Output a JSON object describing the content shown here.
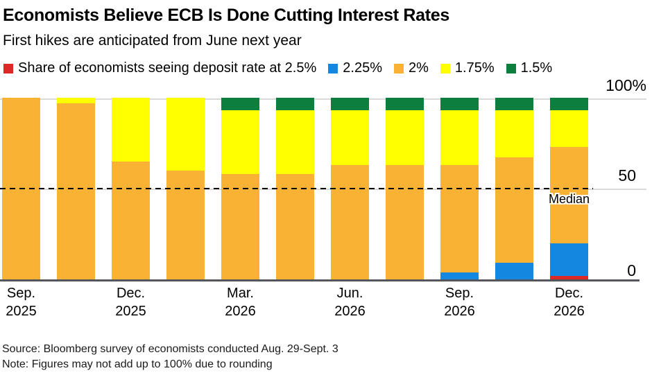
{
  "header": {
    "title": "Economists Believe ECB Is Done Cutting Interest Rates",
    "subtitle": "First hikes are anticipated from June next year"
  },
  "legend": {
    "items": [
      {
        "series": "2.5%",
        "label": "Share of economists seeing deposit rate at 2.5%",
        "color": "#dc2826"
      },
      {
        "series": "2.25%",
        "label": "2.25%",
        "color": "#1488e0"
      },
      {
        "series": "2%",
        "label": "2%",
        "color": "#f9b234"
      },
      {
        "series": "1.75%",
        "label": "1.75%",
        "color": "#ffff00"
      },
      {
        "series": "1.5%",
        "label": "1.5%",
        "color": "#0d7e3e"
      }
    ]
  },
  "chart_data": {
    "type": "bar",
    "stacked": true,
    "unit": "%",
    "ylim": [
      0,
      100
    ],
    "grid": "horizontal",
    "legend_position": "top",
    "y_ticks": [
      "100%",
      "50",
      "0"
    ],
    "median_line": {
      "value": 50,
      "label": "Median"
    },
    "categories": [
      "Sep. 2025",
      "",
      "Dec. 2025",
      "",
      "Mar. 2026",
      "",
      "Jun. 2026",
      "",
      "Sep. 2026",
      "",
      "Dec. 2026"
    ],
    "x_ticks": [
      {
        "bar_index": 0,
        "month": "Sep.",
        "year": "2025"
      },
      {
        "bar_index": 2,
        "month": "Dec.",
        "year": "2025"
      },
      {
        "bar_index": 4,
        "month": "Mar.",
        "year": "2026"
      },
      {
        "bar_index": 6,
        "month": "Jun.",
        "year": "2026"
      },
      {
        "bar_index": 8,
        "month": "Sep.",
        "year": "2026"
      },
      {
        "bar_index": 10,
        "month": "Dec.",
        "year": "2026"
      }
    ],
    "series": [
      {
        "name": "2.5%",
        "color": "#dc2826",
        "values": [
          0,
          0,
          0,
          0,
          0,
          0,
          0,
          0,
          0,
          0,
          2
        ]
      },
      {
        "name": "2.25%",
        "color": "#1488e0",
        "values": [
          0,
          0,
          0,
          0,
          0,
          0,
          0,
          0,
          4,
          9,
          18
        ]
      },
      {
        "name": "2%",
        "color": "#f9b234",
        "values": [
          100,
          97,
          65,
          60,
          58,
          58,
          63,
          63,
          59,
          58,
          53
        ]
      },
      {
        "name": "1.75%",
        "color": "#ffff00",
        "values": [
          0,
          3,
          35,
          40,
          35,
          35,
          30,
          30,
          30,
          26,
          20
        ]
      },
      {
        "name": "1.5%",
        "color": "#0d7e3e",
        "values": [
          0,
          0,
          0,
          0,
          7,
          7,
          7,
          7,
          7,
          7,
          7
        ]
      }
    ]
  },
  "footer": {
    "source": "Source: Bloomberg survey of economists conducted Aug. 29-Sept. 3",
    "note": "Note: Figures may not add up to 100% due to rounding"
  }
}
